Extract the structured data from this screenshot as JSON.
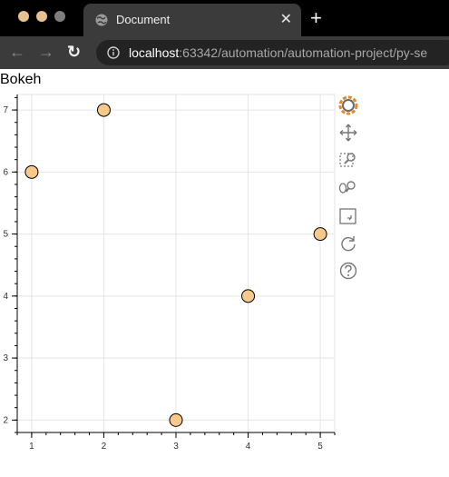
{
  "browser": {
    "tab_title": "Document",
    "tab_close": "✕",
    "new_tab": "+",
    "url_host": "localhost",
    "url_rest": ":63342/automation/automation-project/py-se",
    "nav": {
      "back": "←",
      "forward": "→",
      "reload": "↻"
    },
    "colors": {
      "chrome_bg": "#000000",
      "tab_bg": "#3b3b3b",
      "omnibox_bg": "#232323"
    }
  },
  "page": {
    "title": "Bokeh"
  },
  "toolbar_tools": [
    {
      "name": "bokeh-logo-icon"
    },
    {
      "name": "pan-tool-icon"
    },
    {
      "name": "box-zoom-tool-icon"
    },
    {
      "name": "wheel-zoom-tool-icon"
    },
    {
      "name": "save-tool-icon"
    },
    {
      "name": "reset-tool-icon"
    },
    {
      "name": "help-tool-icon"
    }
  ],
  "chart_data": {
    "type": "scatter",
    "title": "",
    "xlabel": "",
    "ylabel": "",
    "x": [
      1,
      2,
      3,
      4,
      5
    ],
    "y": [
      6,
      7,
      2,
      4,
      5
    ],
    "xlim": [
      0.8,
      5.2
    ],
    "ylim": [
      1.8,
      7.25
    ],
    "xticks": [
      1,
      2,
      3,
      4,
      5
    ],
    "yticks": [
      2,
      3,
      4,
      5,
      6,
      7
    ],
    "grid": true,
    "marker": {
      "fill": "#f8c98a",
      "stroke": "#000000"
    }
  }
}
